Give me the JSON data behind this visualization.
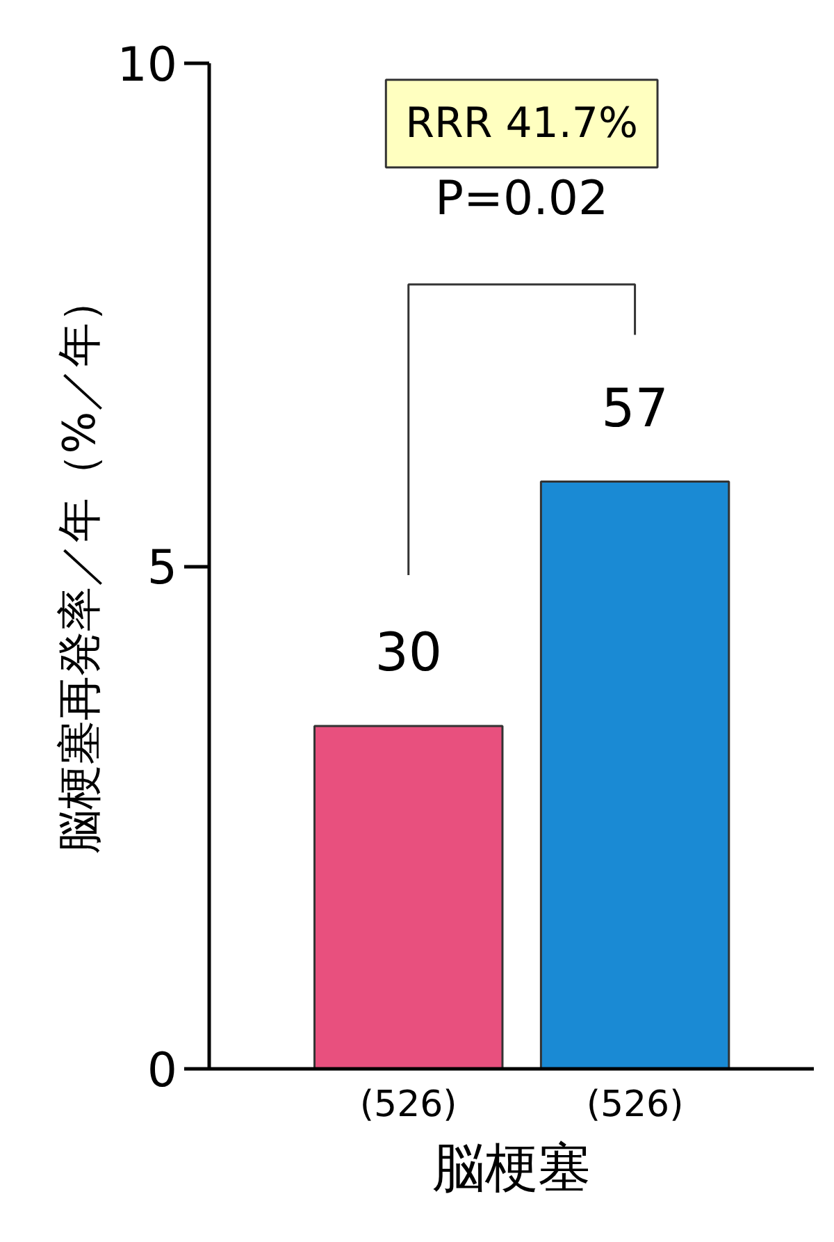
{
  "chart_data": {
    "type": "bar",
    "categories": [
      "(526)",
      "(526)"
    ],
    "values": [
      3.41,
      5.84
    ],
    "colors": [
      "#e8507e",
      "#1a8ad4"
    ],
    "xlabel": "脳梗塞",
    "ylabel": "脳梗塞再発率／年（%／年）",
    "ylim": [
      0,
      10
    ],
    "yticks": [
      0,
      5,
      10
    ],
    "annotations": [
      "RRR 41.7%",
      "P=0.02",
      "30",
      "57"
    ],
    "grid": false
  }
}
